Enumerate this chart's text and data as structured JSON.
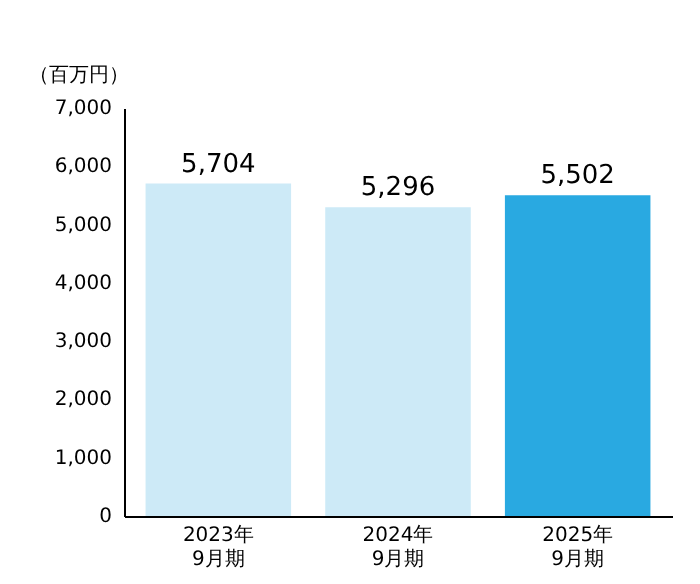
{
  "chart_data": {
    "type": "bar",
    "ylabel": "（百万円）",
    "categories": [
      "2023年\n9月期",
      "2024年\n9月期",
      "2025年\n9月期"
    ],
    "values": [
      5704,
      5296,
      5502
    ],
    "value_labels": [
      "5,704",
      "5,296",
      "5,502"
    ],
    "colors": [
      "#cdeaf7",
      "#cdeaf7",
      "#29a9e1"
    ],
    "ylim": [
      0,
      7000
    ],
    "yticks": [
      0,
      {
        "value": 1000,
        "label": "1,000"
      },
      {
        "value": 2000,
        "label": "2,000"
      },
      {
        "value": 3000,
        "label": "3,000"
      },
      {
        "value": 4000,
        "label": "4,000"
      },
      {
        "value": 5000,
        "label": "5,000"
      },
      {
        "value": 6000,
        "label": "6,000"
      },
      {
        "value": 7000,
        "label": "7,000"
      }
    ],
    "grid": false
  }
}
